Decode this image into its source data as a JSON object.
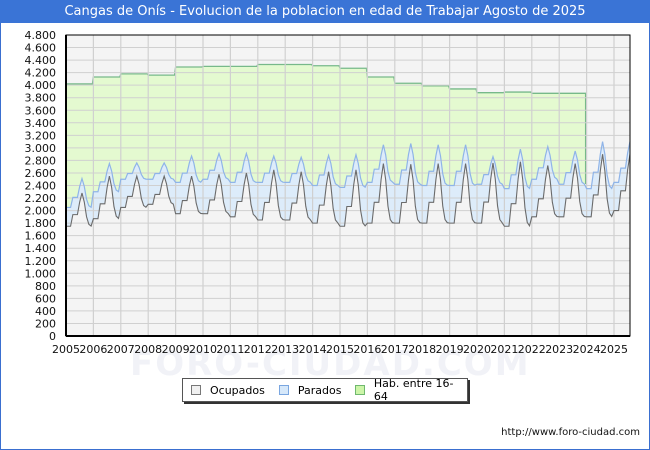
{
  "header": {
    "title": "Cangas de Onís - Evolucion de la poblacion en edad de Trabajar Agosto de 2025"
  },
  "watermark": "FORO-CIUDAD.COM",
  "source": "http://www.foro-ciudad.com",
  "legend": [
    {
      "label": "Ocupados",
      "color": "#f0f0f0",
      "border": "#777777"
    },
    {
      "label": "Parados",
      "color": "#d6e8fa",
      "border": "#7aa6e0"
    },
    {
      "label": "Hab. entre 16-64",
      "color": "#ccf5a8",
      "border": "#6fb86f"
    }
  ],
  "colors": {
    "ocupados_fill": "#f4f4f4",
    "ocupados_line": "#6b6b6b",
    "parados_fill": "#ddecfa",
    "parados_line": "#8fb4e8",
    "hab_fill": "#e4fad0",
    "hab_line": "#77b98a",
    "grid": "#d0d0d0"
  },
  "chart_data": {
    "type": "area",
    "title": "Cangas de Onís - Evolucion de la poblacion en edad de Trabajar Agosto de 2025",
    "xlabel": "",
    "ylabel": "",
    "ylim": [
      0,
      4800
    ],
    "yticks": [
      0,
      200,
      400,
      600,
      800,
      1000,
      1200,
      1400,
      1600,
      1800,
      2000,
      2200,
      2400,
      2600,
      2800,
      3000,
      3200,
      3400,
      3600,
      3800,
      4000,
      4200,
      4400,
      4600,
      4800
    ],
    "ytick_labels": [
      "0",
      "200",
      "400",
      "600",
      "800",
      "1.000",
      "1.200",
      "1.400",
      "1.600",
      "1.800",
      "2.000",
      "2.200",
      "2.400",
      "2.600",
      "2.800",
      "3.000",
      "3.200",
      "3.400",
      "3.600",
      "3.800",
      "4.000",
      "4.200",
      "4.400",
      "4.600",
      "4.800"
    ],
    "categories": [
      "2005",
      "2006",
      "2007",
      "2008",
      "2009",
      "2010",
      "2011",
      "2012",
      "2013",
      "2014",
      "2015",
      "2016",
      "2017",
      "2018",
      "2019",
      "2020",
      "2021",
      "2022",
      "2023",
      "2024",
      "2025"
    ],
    "grid": true,
    "legend_position": "bottom",
    "series": [
      {
        "name": "Hab. entre 16-64",
        "note": "yearly value (step)",
        "values": [
          4020,
          4130,
          4180,
          4160,
          4290,
          4300,
          4300,
          4330,
          4330,
          4310,
          4270,
          4130,
          4030,
          3990,
          3940,
          3880,
          3890,
          3870,
          3870,
          null,
          null
        ]
      },
      {
        "name": "Ocupados",
        "note": "yearly winter low / August peak",
        "low": [
          1750,
          1870,
          2050,
          2100,
          1950,
          1950,
          1900,
          1850,
          1850,
          1800,
          1750,
          1800,
          1800,
          1800,
          1800,
          1800,
          1750,
          1900,
          1900,
          1900,
          2000
        ],
        "peak": [
          2280,
          2550,
          2550,
          2550,
          2550,
          2580,
          2600,
          2650,
          2620,
          2620,
          2650,
          2750,
          2740,
          2750,
          2750,
          2760,
          2780,
          2720,
          2750,
          2900,
          2900
        ]
      },
      {
        "name": "Parados",
        "note": "added on top of Ocupados: yearly winter / August gap",
        "gap_low": [
          300,
          430,
          450,
          400,
          500,
          550,
          550,
          600,
          600,
          600,
          620,
          650,
          620,
          600,
          600,
          620,
          600,
          600,
          520,
          450,
          450
        ],
        "gap_peak": [
          230,
          200,
          210,
          210,
          320,
          330,
          310,
          220,
          230,
          260,
          240,
          300,
          330,
          300,
          300,
          100,
          200,
          300,
          200,
          200,
          200
        ]
      }
    ],
    "last_month_index": 7
  }
}
